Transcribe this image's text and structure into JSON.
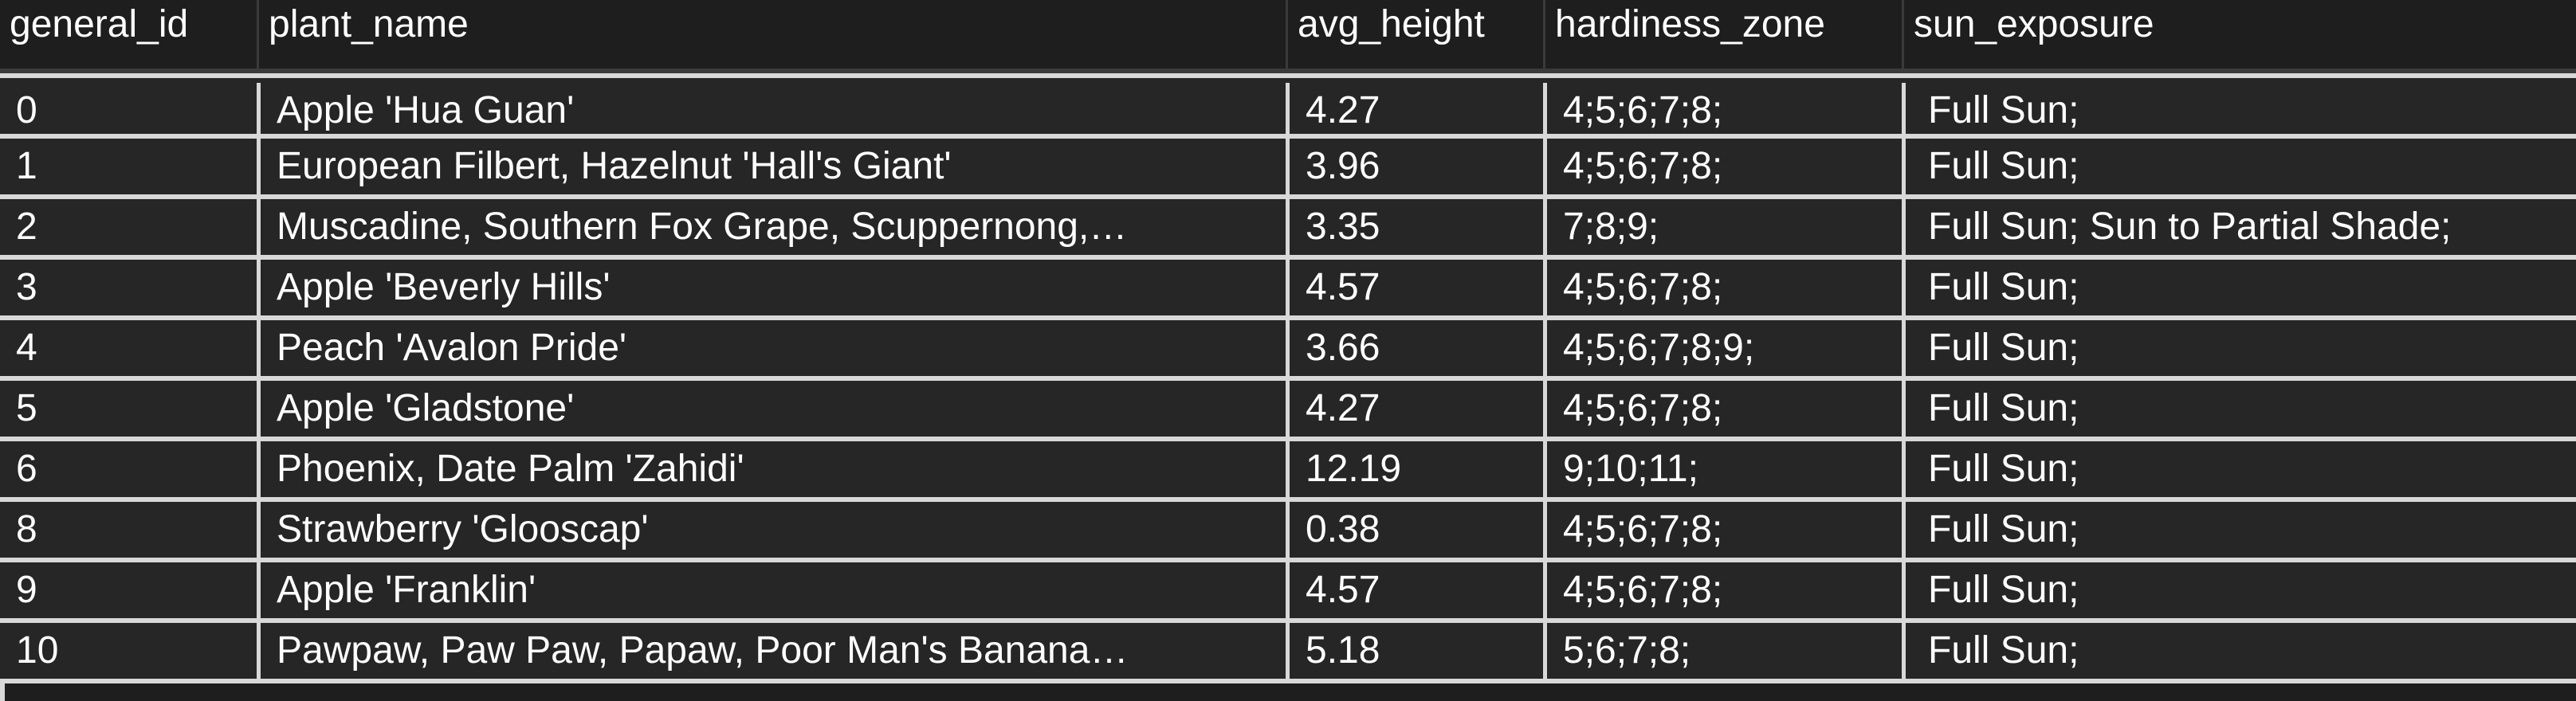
{
  "table": {
    "columns": [
      "general_id",
      "plant_name",
      "avg_height",
      "hardiness_zone",
      "sun_exposure"
    ],
    "rows": [
      [
        "0",
        "Apple 'Hua Guan'",
        "4.27",
        "4;5;6;7;8;",
        "Full Sun;"
      ],
      [
        "1",
        "European Filbert, Hazelnut 'Hall's Giant'",
        "3.96",
        "4;5;6;7;8;",
        "Full Sun;"
      ],
      [
        "2",
        "Muscadine, Southern Fox Grape, Scuppernong,…",
        "3.35",
        "7;8;9;",
        "Full Sun; Sun to Partial Shade;"
      ],
      [
        "3",
        "Apple 'Beverly Hills'",
        "4.57",
        "4;5;6;7;8;",
        "Full Sun;"
      ],
      [
        "4",
        "Peach 'Avalon Pride'",
        "3.66",
        "4;5;6;7;8;9;",
        "Full Sun;"
      ],
      [
        "5",
        "Apple 'Gladstone'",
        "4.27",
        "4;5;6;7;8;",
        "Full Sun;"
      ],
      [
        "6",
        "Phoenix, Date Palm 'Zahidi'",
        "12.19",
        "9;10;11;",
        "Full Sun;"
      ],
      [
        "8",
        "Strawberry 'Glooscap'",
        "0.38",
        "4;5;6;7;8;",
        "Full Sun;"
      ],
      [
        "9",
        "Apple 'Franklin'",
        "4.57",
        "4;5;6;7;8;",
        "Full Sun;"
      ],
      [
        "10",
        "Pawpaw, Paw Paw, Papaw, Poor Man's Banana…",
        "5.18",
        "5;6;7;8;",
        "Full Sun;"
      ]
    ]
  }
}
